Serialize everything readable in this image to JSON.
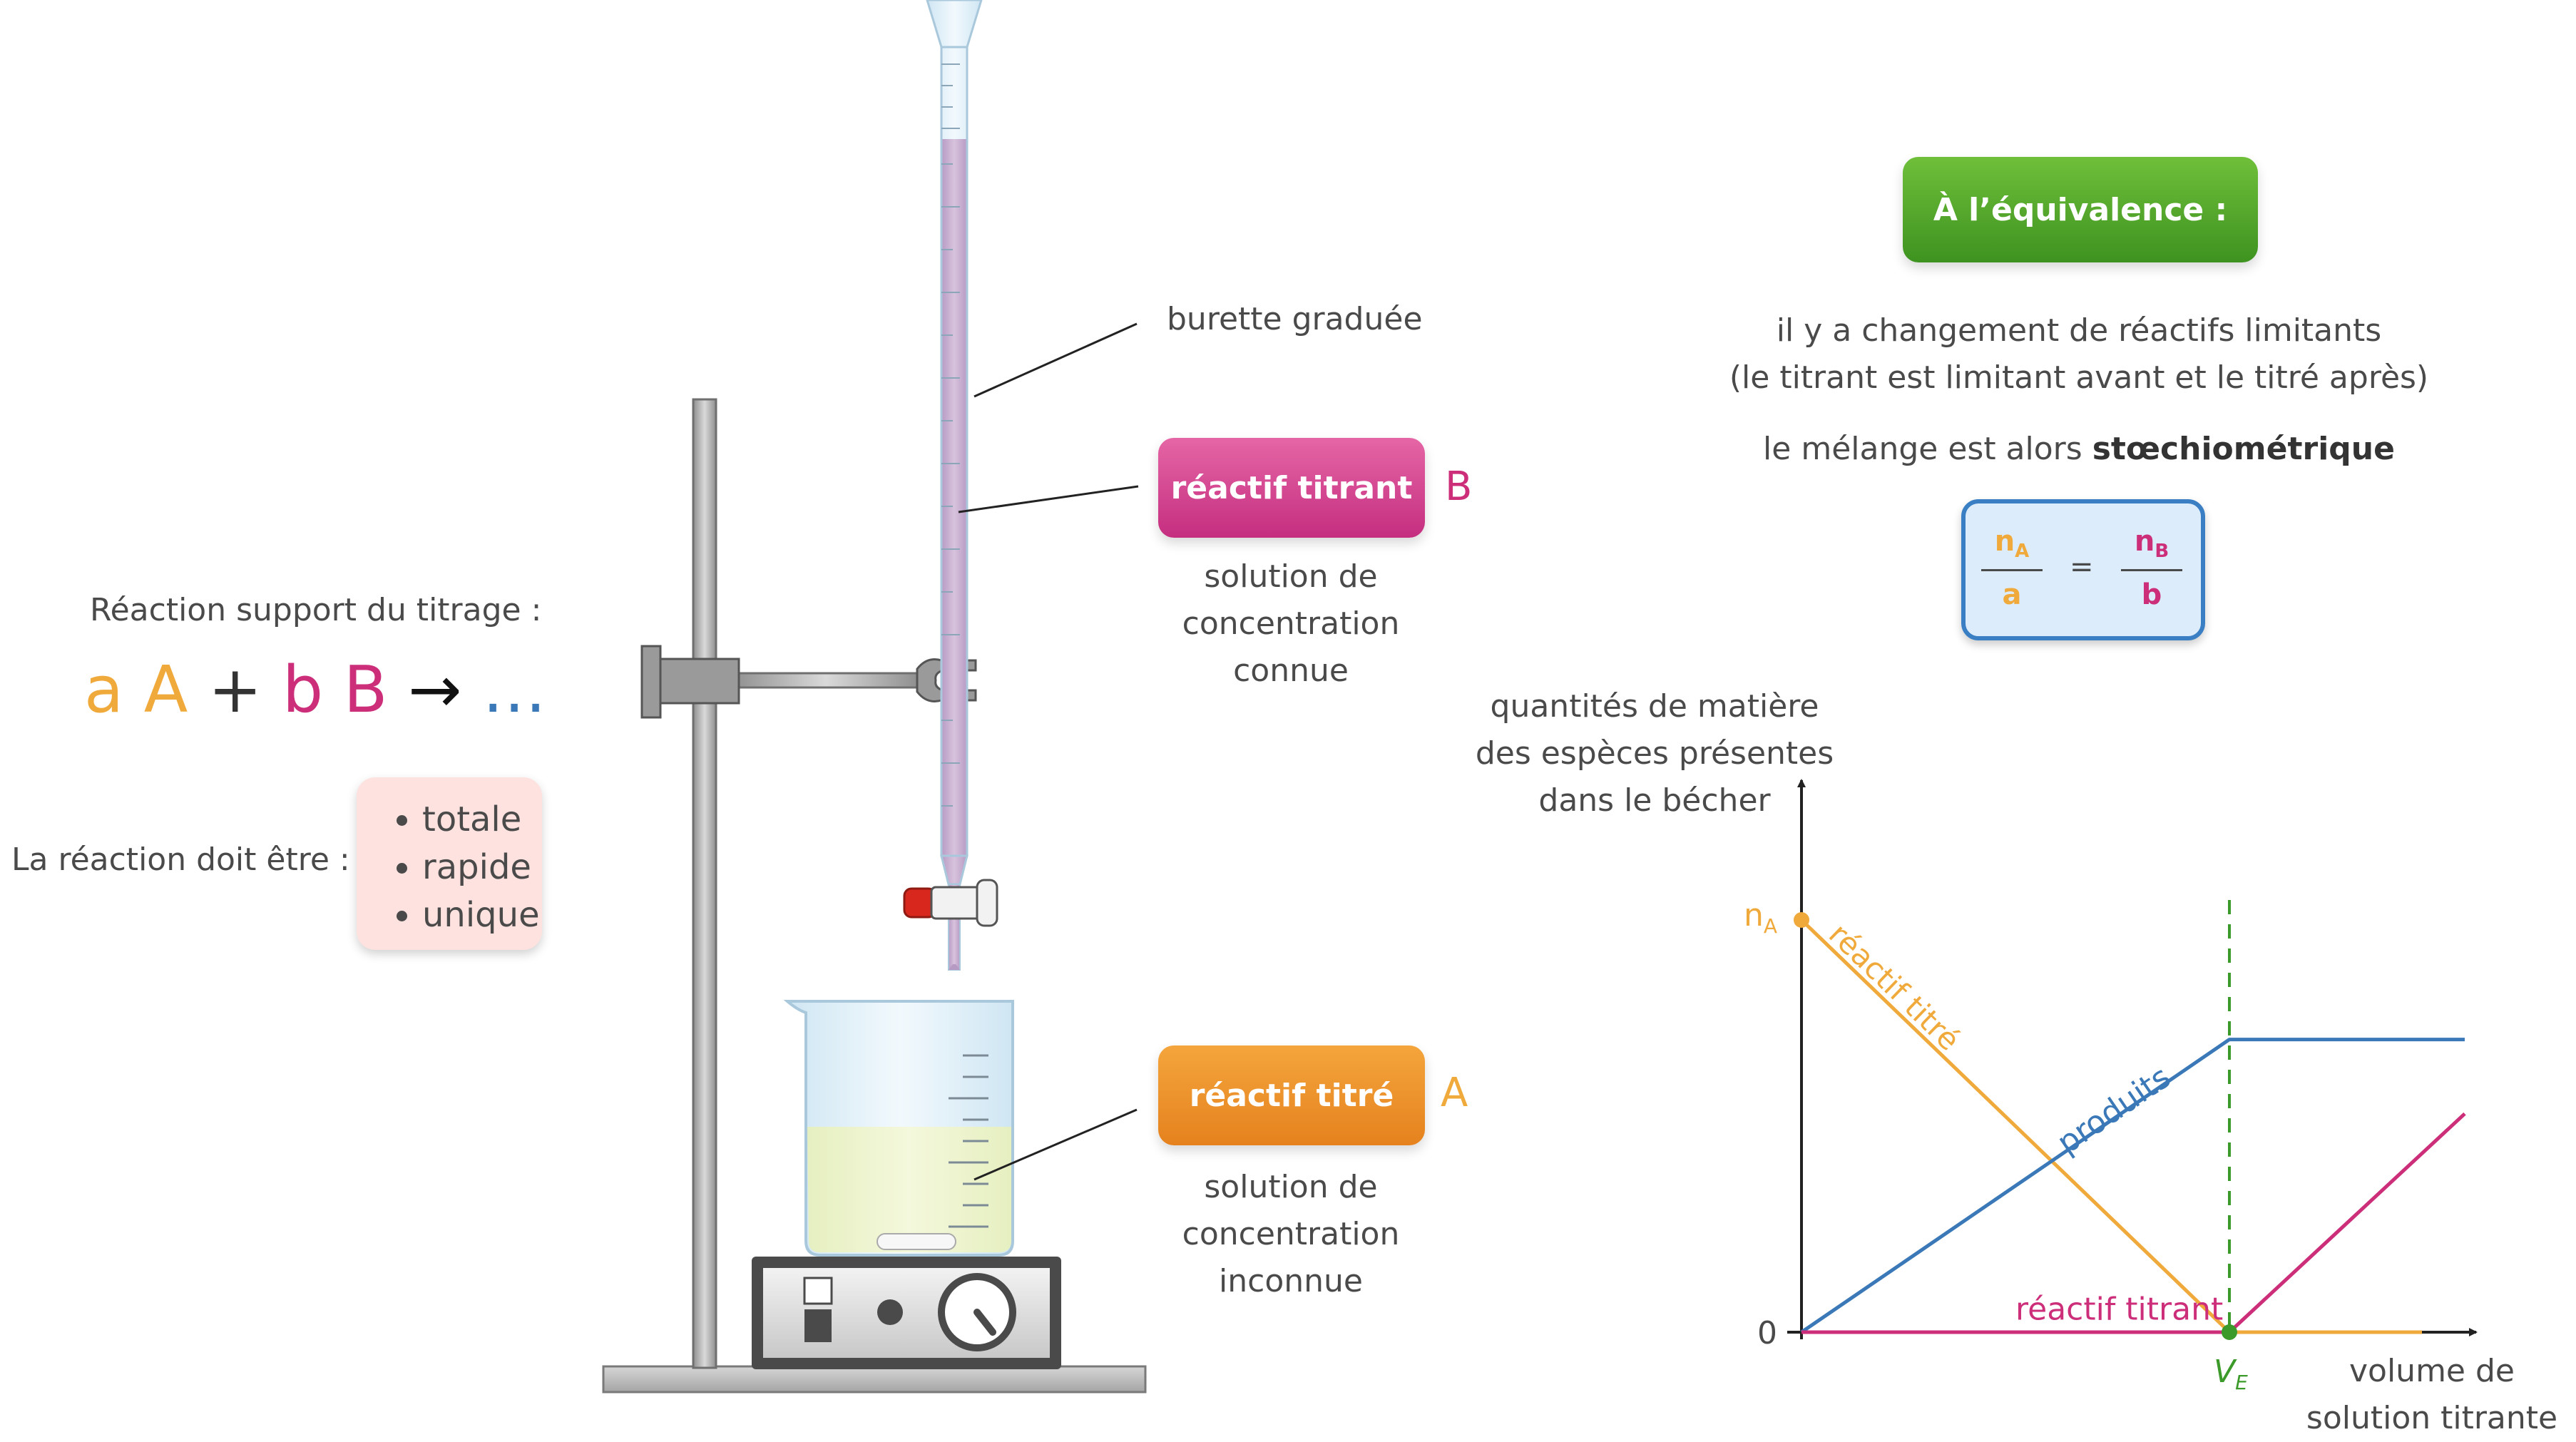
{
  "left": {
    "reaction_title": "Réaction support du titrage :",
    "equation": {
      "coef_a": "a",
      "species_a": "A",
      "plus": "+",
      "coef_b": "b",
      "species_b": "B",
      "arrow": "→",
      "products": "…"
    },
    "conditions_label": "La réaction doit être :",
    "conditions": [
      "totale",
      "rapide",
      "unique"
    ]
  },
  "apparatus": {
    "burette_label": "burette graduée",
    "titrant_label": "réactif titrant",
    "titrant_species": "B",
    "titrant_desc": [
      "solution de",
      "concentration",
      "connue"
    ],
    "titre_label": "réactif titré",
    "titre_species": "A",
    "titre_desc": [
      "solution de",
      "concentration",
      "inconnue"
    ]
  },
  "equivalence": {
    "badge": "À l’équivalence :",
    "line1": "il y a changement de réactifs limitants",
    "line2": "(le titrant est limitant avant et le titré après)",
    "line3_prefix": "le mélange est alors",
    "line3_bold": "stœchiométrique",
    "formula": {
      "left_num": "n",
      "left_num_sub": "A",
      "left_den": "a",
      "equals": "=",
      "right_num": "n",
      "right_num_sub": "B",
      "right_den": "b"
    }
  },
  "colors": {
    "titre": "#f0a93b",
    "titrant": "#cc2e7a",
    "products": "#3a78b8",
    "equivalence": "#3c9a2a",
    "text": "#4a4a4a"
  },
  "chart_data": {
    "type": "line",
    "ylabel": [
      "quantités de matière",
      "des espèces présentes",
      "dans le bécher"
    ],
    "xlabel": [
      "volume de",
      "solution titrante"
    ],
    "y_ticks": [
      {
        "label": "0",
        "value": 0
      },
      {
        "label": "n",
        "sub": "A",
        "value": 1
      }
    ],
    "x_marker": {
      "label": "V",
      "sub": "E",
      "value": 1
    },
    "series": [
      {
        "name": "réactif titré",
        "color": "#f0a93b",
        "x": [
          0,
          1,
          1.45
        ],
        "y": [
          1,
          0,
          0
        ]
      },
      {
        "name": "produits",
        "color": "#3a78b8",
        "x": [
          0,
          1,
          1.55
        ],
        "y": [
          0,
          0.71,
          0.71
        ]
      },
      {
        "name": "réactif titrant",
        "color": "#cc2e7a",
        "x": [
          0,
          1,
          1.55
        ],
        "y": [
          0,
          0,
          0.53
        ]
      }
    ],
    "xlim": [
      0,
      1.6
    ],
    "ylim": [
      0,
      1.2
    ]
  }
}
